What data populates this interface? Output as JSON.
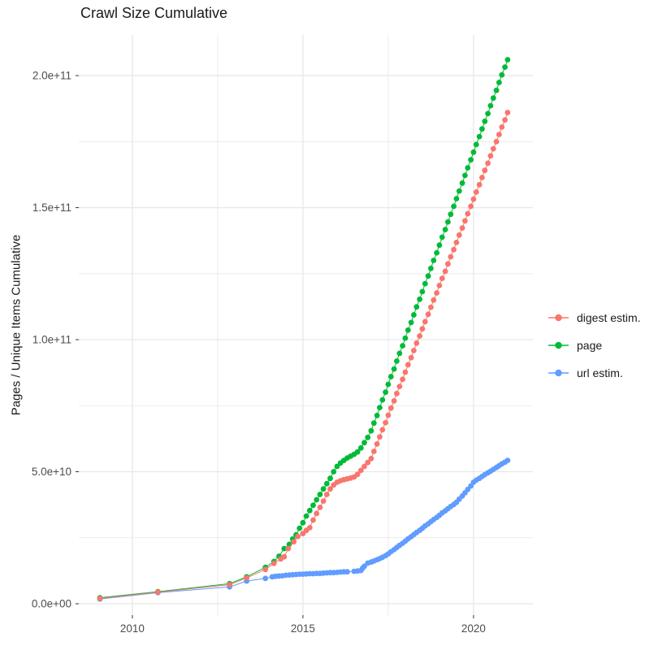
{
  "chart_data": {
    "type": "line",
    "title": "Crawl Size Cumulative",
    "xlabel": "",
    "ylabel": "Pages / Unique Items Cumulative",
    "value_unit_note": "series point values are in billions (1e9) of pages / unique items",
    "xlim": [
      2008.43,
      2021.74
    ],
    "ylim_e9": [
      -4.3,
      215.4
    ],
    "x_ticks": [
      {
        "v": 2010,
        "label": "2010"
      },
      {
        "v": 2015,
        "label": "2015"
      },
      {
        "v": 2020,
        "label": "2020"
      }
    ],
    "x_minor": [
      2012.5,
      2017.5
    ],
    "y_ticks": [
      {
        "v": 0,
        "label": "0.0e+00"
      },
      {
        "v": 50,
        "label": "5.0e+10"
      },
      {
        "v": 100,
        "label": "1.0e+11"
      },
      {
        "v": 150,
        "label": "1.5e+11"
      },
      {
        "v": 200,
        "label": "2.0e+11"
      }
    ],
    "y_minor": [
      25,
      75,
      125,
      175
    ],
    "grid_on": true,
    "grid_color": "#E7E7E7",
    "tick_color": "#333333",
    "tick_label_color": "#4d4d4d",
    "background": "#FFFFFF",
    "legend": {
      "position": "right",
      "items": [
        {
          "label": "digest estim.",
          "color": "#F8766D"
        },
        {
          "label": "page",
          "color": "#00BA38"
        },
        {
          "label": "url estim.",
          "color": "#619CFF"
        }
      ]
    },
    "series": [
      {
        "name": "digest estim.",
        "color": "#F8766D",
        "points": [
          [
            2009.05,
            2
          ],
          [
            2010.75,
            4.4
          ],
          [
            2012.85,
            7.2
          ],
          [
            2013.35,
            9.8
          ],
          [
            2013.9,
            13
          ],
          [
            2014.15,
            15.3
          ],
          [
            2014.35,
            17
          ],
          [
            2014.45,
            17.8
          ],
          [
            2014.57,
            20.9
          ],
          [
            2014.73,
            23.5
          ],
          [
            2014.85,
            25.5
          ],
          [
            2015,
            26.6
          ],
          [
            2015.1,
            27.8
          ],
          [
            2015.2,
            28.8
          ],
          [
            2015.3,
            31.7
          ],
          [
            2015.4,
            34.2
          ],
          [
            2015.5,
            36.5
          ],
          [
            2015.6,
            38.9
          ],
          [
            2015.7,
            41.4
          ],
          [
            2015.8,
            43.5
          ],
          [
            2015.9,
            45
          ],
          [
            2016,
            46
          ],
          [
            2016.1,
            46.6
          ],
          [
            2016.2,
            47
          ],
          [
            2016.3,
            47.3
          ],
          [
            2016.4,
            47.6
          ],
          [
            2016.5,
            48
          ],
          [
            2016.6,
            49
          ],
          [
            2016.7,
            50.5
          ],
          [
            2016.8,
            52
          ],
          [
            2016.9,
            53.5
          ],
          [
            2017,
            55
          ],
          [
            2017.08,
            57.7
          ],
          [
            2017.17,
            60.5
          ],
          [
            2017.25,
            63.2
          ],
          [
            2017.33,
            65.9
          ],
          [
            2017.42,
            68.6
          ],
          [
            2017.5,
            71.4
          ],
          [
            2017.58,
            74.1
          ],
          [
            2017.67,
            76.8
          ],
          [
            2017.75,
            79.6
          ],
          [
            2017.83,
            82.3
          ],
          [
            2017.92,
            85
          ],
          [
            2018,
            87.7
          ],
          [
            2018.08,
            90.5
          ],
          [
            2018.17,
            93.2
          ],
          [
            2018.25,
            95.9
          ],
          [
            2018.33,
            98.7
          ],
          [
            2018.42,
            101.4
          ],
          [
            2018.5,
            104.1
          ],
          [
            2018.58,
            106.8
          ],
          [
            2018.67,
            109.6
          ],
          [
            2018.75,
            112.3
          ],
          [
            2018.83,
            115
          ],
          [
            2018.92,
            117.7
          ],
          [
            2019,
            120.5
          ],
          [
            2019.08,
            123.2
          ],
          [
            2019.17,
            125.9
          ],
          [
            2019.25,
            128.7
          ],
          [
            2019.33,
            131.4
          ],
          [
            2019.42,
            134.1
          ],
          [
            2019.5,
            136.8
          ],
          [
            2019.58,
            139.6
          ],
          [
            2019.67,
            142.3
          ],
          [
            2019.75,
            145
          ],
          [
            2019.83,
            147.7
          ],
          [
            2019.92,
            150.5
          ],
          [
            2020,
            153.2
          ],
          [
            2020.08,
            155.9
          ],
          [
            2020.17,
            158.7
          ],
          [
            2020.25,
            161.4
          ],
          [
            2020.33,
            164.1
          ],
          [
            2020.42,
            166.8
          ],
          [
            2020.5,
            169.6
          ],
          [
            2020.58,
            172.3
          ],
          [
            2020.67,
            175
          ],
          [
            2020.75,
            177.7
          ],
          [
            2020.83,
            180.5
          ],
          [
            2020.92,
            183.2
          ],
          [
            2021,
            186
          ]
        ]
      },
      {
        "name": "page",
        "color": "#00BA38",
        "points": [
          [
            2009.05,
            2.3
          ],
          [
            2010.75,
            4.6
          ],
          [
            2012.85,
            7.6
          ],
          [
            2013.35,
            10.2
          ],
          [
            2013.9,
            13.8
          ],
          [
            2014.15,
            16
          ],
          [
            2014.3,
            18
          ],
          [
            2014.45,
            20.9
          ],
          [
            2014.6,
            22.5
          ],
          [
            2014.7,
            24.5
          ],
          [
            2014.8,
            26.1
          ],
          [
            2014.9,
            28.6
          ],
          [
            2015,
            30.7
          ],
          [
            2015.1,
            33.2
          ],
          [
            2015.2,
            35.3
          ],
          [
            2015.3,
            37.3
          ],
          [
            2015.4,
            39.4
          ],
          [
            2015.5,
            41.4
          ],
          [
            2015.6,
            43.5
          ],
          [
            2015.7,
            45.5
          ],
          [
            2015.8,
            47.5
          ],
          [
            2015.9,
            50
          ],
          [
            2016,
            52
          ],
          [
            2016.1,
            53.3
          ],
          [
            2016.2,
            54.3
          ],
          [
            2016.3,
            55.2
          ],
          [
            2016.4,
            55.9
          ],
          [
            2016.5,
            56.6
          ],
          [
            2016.6,
            57.5
          ],
          [
            2016.7,
            59
          ],
          [
            2016.8,
            61
          ],
          [
            2016.9,
            63
          ],
          [
            2017,
            65.5
          ],
          [
            2017.08,
            68.4
          ],
          [
            2017.17,
            71.3
          ],
          [
            2017.25,
            74.3
          ],
          [
            2017.33,
            77.2
          ],
          [
            2017.42,
            80.1
          ],
          [
            2017.5,
            83.1
          ],
          [
            2017.58,
            86
          ],
          [
            2017.67,
            88.9
          ],
          [
            2017.75,
            91.9
          ],
          [
            2017.83,
            94.8
          ],
          [
            2017.92,
            97.7
          ],
          [
            2018,
            100.6
          ],
          [
            2018.08,
            103.6
          ],
          [
            2018.17,
            106.5
          ],
          [
            2018.25,
            109.4
          ],
          [
            2018.33,
            112.4
          ],
          [
            2018.42,
            115.3
          ],
          [
            2018.5,
            118.2
          ],
          [
            2018.58,
            121.2
          ],
          [
            2018.67,
            124.1
          ],
          [
            2018.75,
            127
          ],
          [
            2018.83,
            130
          ],
          [
            2018.92,
            132.9
          ],
          [
            2019,
            135.8
          ],
          [
            2019.08,
            138.8
          ],
          [
            2019.17,
            141.7
          ],
          [
            2019.25,
            144.6
          ],
          [
            2019.33,
            147.5
          ],
          [
            2019.42,
            150.5
          ],
          [
            2019.5,
            153.4
          ],
          [
            2019.58,
            156.3
          ],
          [
            2019.67,
            159.3
          ],
          [
            2019.75,
            162.2
          ],
          [
            2019.83,
            165.1
          ],
          [
            2019.92,
            168.1
          ],
          [
            2020,
            171
          ],
          [
            2020.08,
            173.9
          ],
          [
            2020.17,
            176.9
          ],
          [
            2020.25,
            179.8
          ],
          [
            2020.33,
            182.7
          ],
          [
            2020.42,
            185.6
          ],
          [
            2020.5,
            188.6
          ],
          [
            2020.58,
            191.5
          ],
          [
            2020.67,
            194.4
          ],
          [
            2020.75,
            197.4
          ],
          [
            2020.83,
            200.3
          ],
          [
            2020.92,
            203.2
          ],
          [
            2021,
            206
          ]
        ]
      },
      {
        "name": "url estim.",
        "color": "#619CFF",
        "points": [
          [
            2009.05,
            1.8
          ],
          [
            2010.75,
            4.2
          ],
          [
            2012.85,
            6.4
          ],
          [
            2013.35,
            8.6
          ],
          [
            2013.9,
            9.6
          ],
          [
            2014.1,
            10.2
          ],
          [
            2014.2,
            10.4
          ],
          [
            2014.3,
            10.5
          ],
          [
            2014.4,
            10.6
          ],
          [
            2014.5,
            10.8
          ],
          [
            2014.6,
            10.9
          ],
          [
            2014.7,
            11
          ],
          [
            2014.8,
            11.1
          ],
          [
            2014.9,
            11.2
          ],
          [
            2015,
            11.2
          ],
          [
            2015.1,
            11.3
          ],
          [
            2015.2,
            11.4
          ],
          [
            2015.3,
            11.4
          ],
          [
            2015.4,
            11.5
          ],
          [
            2015.5,
            11.5
          ],
          [
            2015.6,
            11.6
          ],
          [
            2015.7,
            11.7
          ],
          [
            2015.8,
            11.8
          ],
          [
            2015.9,
            11.8
          ],
          [
            2016,
            11.9
          ],
          [
            2016.1,
            12
          ],
          [
            2016.2,
            12.1
          ],
          [
            2016.3,
            12.1
          ],
          [
            2016.5,
            12.3
          ],
          [
            2016.6,
            12.4
          ],
          [
            2016.7,
            12.6
          ],
          [
            2016.75,
            13.5
          ],
          [
            2016.8,
            14.2
          ],
          [
            2016.9,
            15.4
          ],
          [
            2017,
            15.8
          ],
          [
            2017.08,
            16.2
          ],
          [
            2017.17,
            16.7
          ],
          [
            2017.25,
            17.1
          ],
          [
            2017.33,
            17.6
          ],
          [
            2017.42,
            18.2
          ],
          [
            2017.5,
            18.9
          ],
          [
            2017.58,
            19.7
          ],
          [
            2017.67,
            20.5
          ],
          [
            2017.75,
            21.3
          ],
          [
            2017.83,
            22.1
          ],
          [
            2017.92,
            22.9
          ],
          [
            2018,
            23.7
          ],
          [
            2018.08,
            24.6
          ],
          [
            2018.17,
            25.4
          ],
          [
            2018.25,
            26.2
          ],
          [
            2018.33,
            27
          ],
          [
            2018.42,
            27.8
          ],
          [
            2018.5,
            28.6
          ],
          [
            2018.58,
            29.5
          ],
          [
            2018.67,
            30.3
          ],
          [
            2018.75,
            31.1
          ],
          [
            2018.83,
            31.9
          ],
          [
            2018.92,
            32.7
          ],
          [
            2019,
            33.5
          ],
          [
            2019.08,
            34.4
          ],
          [
            2019.17,
            35.2
          ],
          [
            2019.25,
            36
          ],
          [
            2019.33,
            36.8
          ],
          [
            2019.42,
            37.6
          ],
          [
            2019.5,
            38.4
          ],
          [
            2019.58,
            39.6
          ],
          [
            2019.67,
            40.8
          ],
          [
            2019.75,
            42
          ],
          [
            2019.83,
            43.3
          ],
          [
            2019.92,
            44.6
          ],
          [
            2020,
            46
          ],
          [
            2020.08,
            46.8
          ],
          [
            2020.17,
            47.5
          ],
          [
            2020.25,
            48.2
          ],
          [
            2020.33,
            48.9
          ],
          [
            2020.42,
            49.6
          ],
          [
            2020.5,
            50.2
          ],
          [
            2020.58,
            50.9
          ],
          [
            2020.67,
            51.6
          ],
          [
            2020.75,
            52.3
          ],
          [
            2020.83,
            53
          ],
          [
            2020.92,
            53.6
          ],
          [
            2021,
            54.3
          ]
        ]
      }
    ]
  }
}
